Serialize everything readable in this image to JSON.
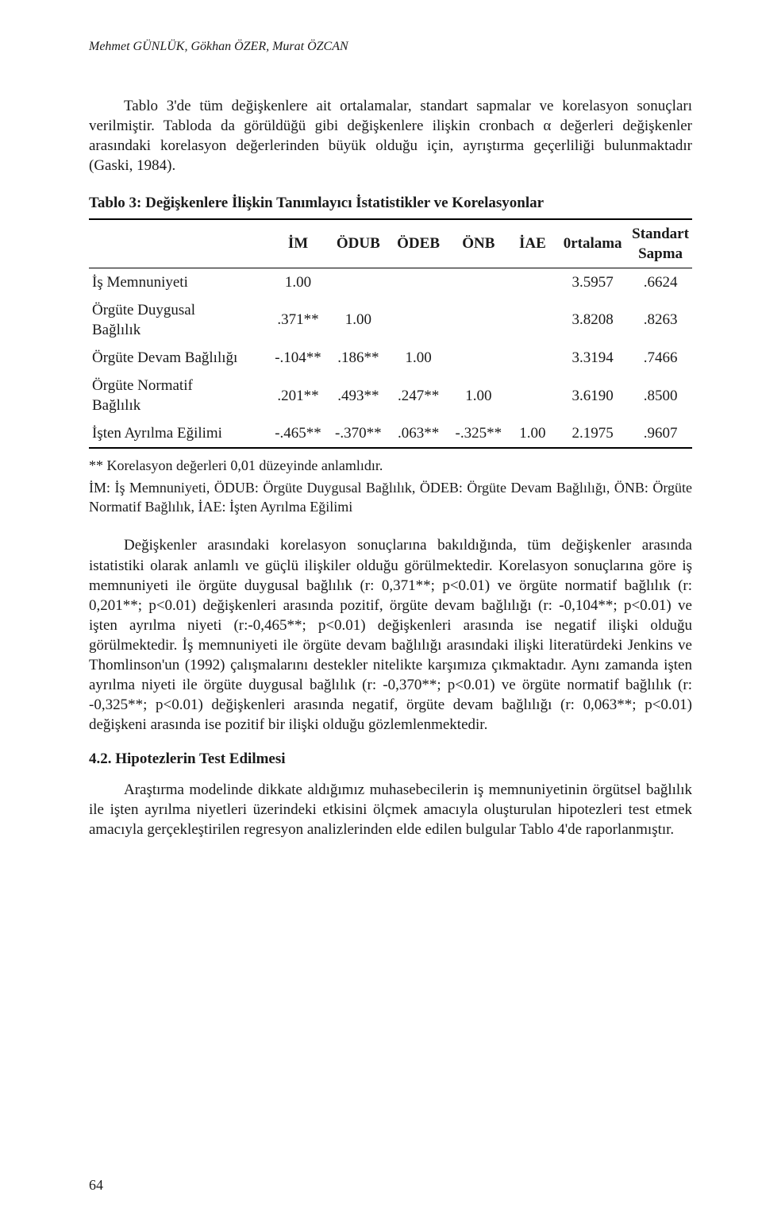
{
  "authors": "Mehmet GÜNLÜK, Gökhan ÖZER, Murat ÖZCAN",
  "para1": "Tablo 3'de tüm değişkenlere ait ortalamalar, standart sapmalar ve korelasyon sonuçları verilmiştir. Tabloda da görüldüğü gibi değişkenlere ilişkin cronbach α değerleri değişkenler arasındaki korelasyon değerlerinden büyük olduğu için, ayrıştırma geçerliliği bulunmaktadır (Gaski, 1984).",
  "table": {
    "caption": "Tablo 3: Değişkenlere İlişkin Tanımlayıcı İstatistikler ve Korelasyonlar",
    "headers": {
      "rowlabel": "",
      "c1": "İM",
      "c2": "ÖDUB",
      "c3": "ÖDEB",
      "c4": "ÖNB",
      "c5": "İAE",
      "c6": "0rtalama",
      "c7a": "Standart",
      "c7b": "Sapma"
    },
    "rows": [
      {
        "label": "İş Memnuniyeti",
        "c1": "1.00",
        "c2": "",
        "c3": "",
        "c4": "",
        "c5": "",
        "mean": "3.5957",
        "sd": ".6624"
      },
      {
        "label": "Örgüte Duygusal\nBağlılık",
        "c1": ".371**",
        "c2": "1.00",
        "c3": "",
        "c4": "",
        "c5": "",
        "mean": "3.8208",
        "sd": ".8263"
      },
      {
        "label": "Örgüte Devam Bağlılığı",
        "c1": "-.104**",
        "c2": ".186**",
        "c3": "1.00",
        "c4": "",
        "c5": "",
        "mean": "3.3194",
        "sd": ".7466"
      },
      {
        "label": "Örgüte Normatif\nBağlılık",
        "c1": ".201**",
        "c2": ".493**",
        "c3": ".247**",
        "c4": "1.00",
        "c5": "",
        "mean": "3.6190",
        "sd": ".8500"
      },
      {
        "label": "İşten Ayrılma Eğilimi",
        "c1": "-.465**",
        "c2": "-.370**",
        "c3": ".063**",
        "c4": "-.325**",
        "c5": "1.00",
        "mean": "2.1975",
        "sd": ".9607"
      }
    ]
  },
  "footnote_sig": "** Korelasyon değerleri 0,01 düzeyinde anlamlıdır.",
  "footnote_abbr": "İM: İş Memnuniyeti, ÖDUB: Örgüte Duygusal Bağlılık, ÖDEB: Örgüte Devam Bağlılığı, ÖNB: Örgüte Normatif Bağlılık, İAE: İşten Ayrılma Eğilimi",
  "para2": "Değişkenler arasındaki korelasyon sonuçlarına bakıldığında, tüm değişkenler arasında istatistiki olarak anlamlı ve güçlü ilişkiler olduğu görülmektedir. Korelasyon sonuçlarına göre iş memnuniyeti ile örgüte duygusal bağlılık (r: 0,371**; p<0.01) ve örgüte normatif bağlılık (r: 0,201**; p<0.01) değişkenleri arasında pozitif, örgüte devam bağlılığı (r: -0,104**; p<0.01) ve işten ayrılma niyeti (r:-0,465**; p<0.01) değişkenleri arasında ise negatif ilişki olduğu görülmektedir. İş memnuniyeti ile örgüte devam bağlılığı arasındaki ilişki literatürdeki Jenkins ve Thomlinson'un (1992) çalışmalarını destekler nitelikte karşımıza çıkmaktadır. Aynı zamanda işten ayrılma niyeti ile örgüte duygusal bağlılık (r: -0,370**; p<0.01) ve örgüte normatif bağlılık (r: -0,325**; p<0.01) değişkenleri arasında negatif, örgüte devam bağlılığı (r: 0,063**; p<0.01) değişkeni arasında ise pozitif bir ilişki olduğu gözlemlenmektedir.",
  "section": "4.2. Hipotezlerin Test Edilmesi",
  "para3": "Araştırma modelinde dikkate aldığımız muhasebecilerin iş memnuniyetinin örgütsel bağlılık ile işten ayrılma niyetleri üzerindeki etkisini ölçmek amacıyla oluşturulan hipotezleri test etmek amacıyla gerçekleştirilen regresyon analizlerinden elde edilen bulgular Tablo 4'de raporlanmıştır.",
  "pagenum": "64"
}
